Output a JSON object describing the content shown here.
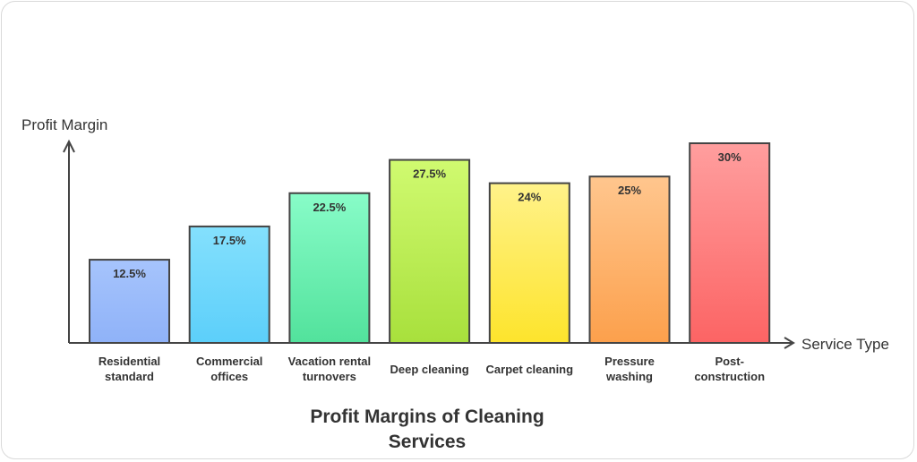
{
  "chart_data": {
    "type": "bar",
    "title": "Profit Margins of Cleaning Services",
    "title_lines": [
      "Profit Margins of Cleaning",
      "Services"
    ],
    "xlabel": "Service Type",
    "ylabel": "Profit Margin",
    "ylim": [
      0,
      30
    ],
    "grid": false,
    "categories": [
      [
        "Residential",
        "standard"
      ],
      [
        "Commercial",
        "offices"
      ],
      [
        "Vacation rental",
        "turnovers"
      ],
      [
        "Deep cleaning"
      ],
      [
        "Carpet cleaning"
      ],
      [
        "Pressure",
        "washing"
      ],
      [
        "Post-",
        "construction"
      ]
    ],
    "values": [
      12.5,
      17.5,
      22.5,
      27.5,
      24,
      25,
      30
    ],
    "data_labels": [
      "12.5%",
      "17.5%",
      "22.5%",
      "27.5%",
      "24%",
      "25%",
      "30%"
    ],
    "colors": [
      [
        "#a6c4fc",
        "#8fb2f8"
      ],
      [
        "#84e0fd",
        "#5ccffa"
      ],
      [
        "#88fcc8",
        "#52e29c"
      ],
      [
        "#d0fa70",
        "#a8e03c"
      ],
      [
        "#fff28a",
        "#fde42c"
      ],
      [
        "#ffc68e",
        "#fca04c"
      ],
      [
        "#ff9e9e",
        "#fc6464"
      ]
    ]
  }
}
